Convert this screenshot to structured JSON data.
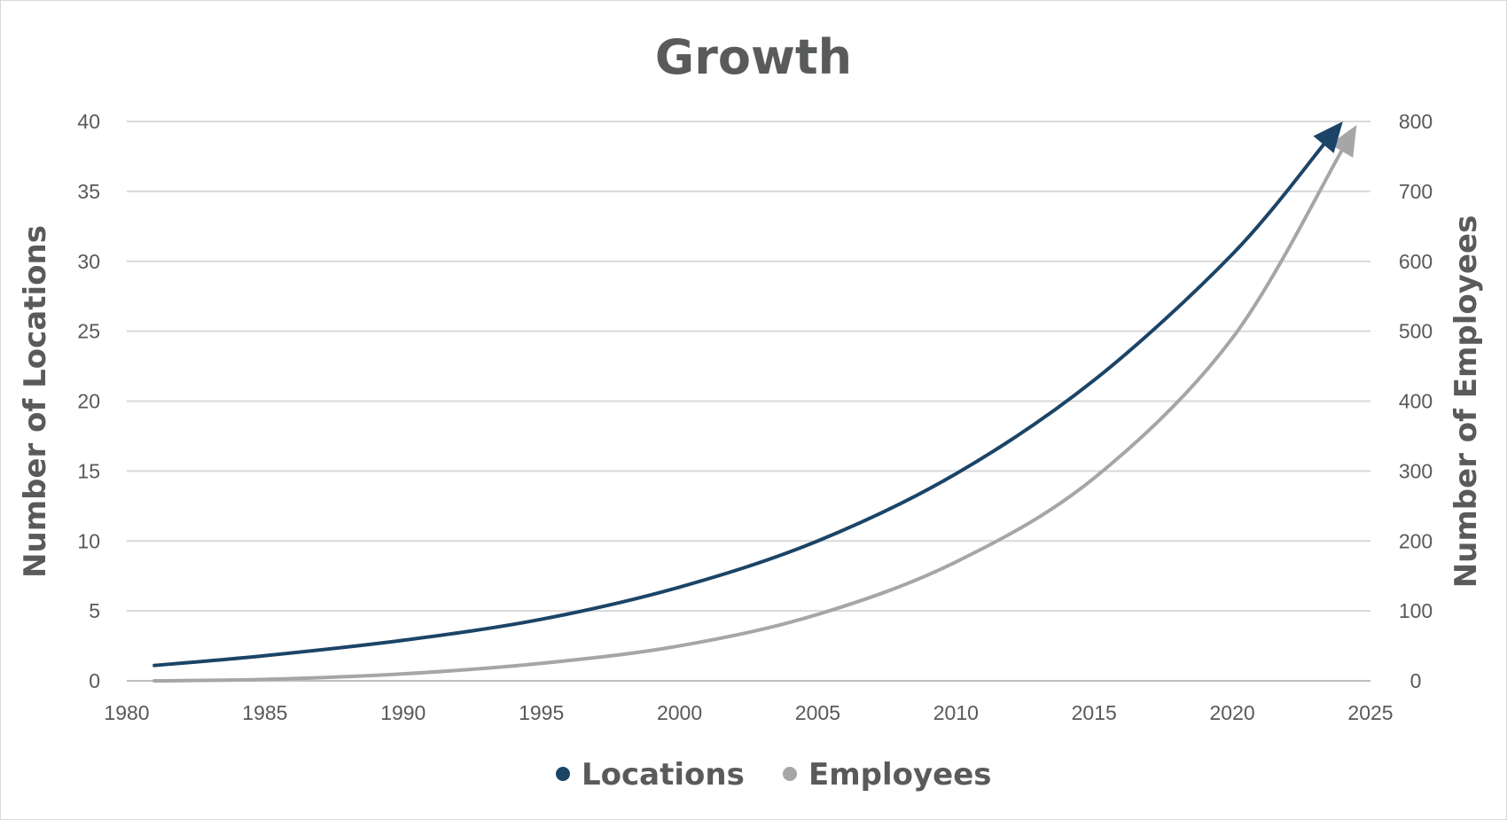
{
  "chart_data": {
    "type": "line",
    "title": "Growth",
    "xlabel": "",
    "ylabel": "Number of Locations",
    "y2label": "Number of Employees",
    "xlim": [
      1980,
      2025
    ],
    "ylim": [
      0,
      40
    ],
    "y2lim": [
      0,
      800
    ],
    "xticks": [
      "1980",
      "1985",
      "1990",
      "1995",
      "2000",
      "2005",
      "2010",
      "2015",
      "2020",
      "2025"
    ],
    "yticks": [
      "0",
      "5",
      "10",
      "15",
      "20",
      "25",
      "30",
      "35",
      "40"
    ],
    "y2ticks": [
      "0",
      "100",
      "200",
      "300",
      "400",
      "500",
      "600",
      "700",
      "800"
    ],
    "grid": true,
    "legend": "bottom",
    "series": [
      {
        "name": "Locations",
        "axis": "left",
        "color": "#1b4467",
        "x": [
          1981,
          1985,
          1990,
          1995,
          2000,
          2005,
          2010,
          2015,
          2020,
          2024
        ],
        "y": [
          1.1,
          1.8,
          2.9,
          4.4,
          6.7,
          10.0,
          14.8,
          21.5,
          30.5,
          40.0
        ]
      },
      {
        "name": "Employees",
        "axis": "right",
        "color": "#a6a6a8",
        "x": [
          1981,
          1985,
          1990,
          1995,
          2000,
          2005,
          2010,
          2015,
          2020,
          2024.5
        ],
        "y": [
          0,
          2,
          10,
          25,
          50,
          95,
          170,
          290,
          490,
          795
        ]
      }
    ]
  }
}
